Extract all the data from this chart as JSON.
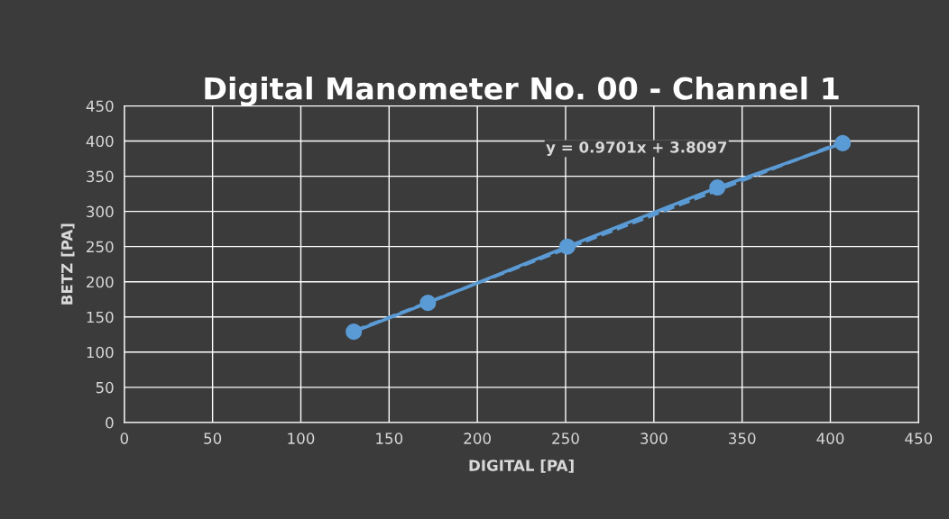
{
  "chart_data": {
    "type": "line",
    "title": "Digital Manometer No. 00 - Channel 1",
    "xlabel": "DIGITAL [PA]",
    "ylabel": "BETZ [PA]",
    "x": [
      130,
      172,
      251,
      336,
      407
    ],
    "series": [
      {
        "color": "#5b9bd5",
        "values": [
          129,
          170,
          250,
          334,
          397
        ],
        "marker": "circle",
        "line_style": "solid"
      },
      {
        "type": "line",
        "color": "#5b9bd5",
        "x": [
          130,
          407
        ],
        "values": [
          130,
          399
        ],
        "marker": "none",
        "line_style": "dashed"
      }
    ],
    "annotations": [
      "y = 0.9701x + 3.8097"
    ],
    "xlim": [
      0,
      450
    ],
    "xticks": [
      0,
      50,
      100,
      150,
      200,
      250,
      300,
      350,
      400,
      450
    ],
    "ylim": [
      0,
      450
    ],
    "yticks": [
      0,
      50,
      100,
      150,
      200,
      250,
      300,
      350,
      400,
      450
    ],
    "grid": true,
    "legend": false
  }
}
